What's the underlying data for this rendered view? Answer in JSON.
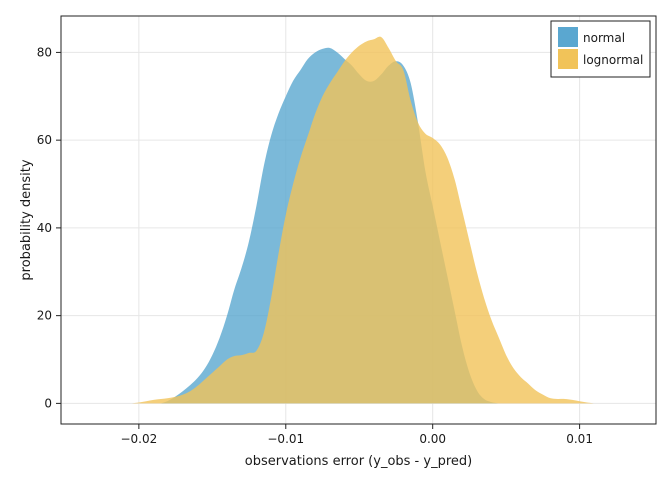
{
  "chart_data": {
    "type": "area",
    "xlabel": "observations error (y_obs - y_pred)",
    "ylabel": "probability density",
    "xlim": [
      -0.0253,
      0.0152
    ],
    "ylim": [
      -4.7,
      88.3
    ],
    "xticks": [
      -0.02,
      -0.01,
      0.0,
      0.01
    ],
    "xtick_labels": [
      "−0.02",
      "−0.01",
      "0.00",
      "0.01"
    ],
    "yticks": [
      0,
      20,
      40,
      60,
      80
    ],
    "ytick_labels": [
      "0",
      "20",
      "40",
      "60",
      "80"
    ],
    "grid": true,
    "legend_position": "top-right",
    "series": [
      {
        "name": "normal",
        "color": "#5aa7d0",
        "opacity": 0.8,
        "x": [
          -0.0185,
          -0.018,
          -0.0175,
          -0.017,
          -0.0165,
          -0.016,
          -0.0155,
          -0.015,
          -0.0145,
          -0.014,
          -0.0135,
          -0.013,
          -0.0125,
          -0.012,
          -0.0115,
          -0.011,
          -0.0105,
          -0.01,
          -0.0095,
          -0.009,
          -0.0085,
          -0.008,
          -0.0075,
          -0.007,
          -0.0065,
          -0.006,
          -0.0055,
          -0.005,
          -0.0045,
          -0.004,
          -0.0035,
          -0.003,
          -0.0025,
          -0.002,
          -0.0015,
          -0.001,
          -0.0005,
          0.0,
          0.0005,
          0.001,
          0.0015,
          0.002,
          0.0025,
          0.003,
          0.0035,
          0.004,
          0.0045
        ],
        "y": [
          0,
          0.6,
          1.6,
          2.8,
          4.2,
          5.8,
          8.0,
          11.0,
          15.0,
          20.0,
          26.0,
          31.0,
          37.0,
          45.0,
          54.0,
          61.0,
          66.0,
          70.0,
          73.5,
          76.0,
          78.5,
          80.0,
          80.8,
          81.0,
          80.0,
          78.5,
          77.0,
          75.0,
          73.5,
          73.5,
          75.0,
          77.0,
          78.0,
          77.0,
          73.0,
          64.0,
          53.0,
          45.0,
          37.0,
          29.0,
          21.0,
          13.0,
          7.0,
          3.0,
          1.0,
          0.3,
          0
        ]
      },
      {
        "name": "lognormal",
        "color": "#f1c359",
        "opacity": 0.8,
        "x": [
          -0.0205,
          -0.02,
          -0.0195,
          -0.019,
          -0.0185,
          -0.018,
          -0.0175,
          -0.017,
          -0.0165,
          -0.016,
          -0.0155,
          -0.015,
          -0.0145,
          -0.014,
          -0.0135,
          -0.013,
          -0.0125,
          -0.012,
          -0.0115,
          -0.011,
          -0.0105,
          -0.01,
          -0.0095,
          -0.009,
          -0.0085,
          -0.008,
          -0.0075,
          -0.007,
          -0.0065,
          -0.006,
          -0.0055,
          -0.005,
          -0.0045,
          -0.004,
          -0.0035,
          -0.003,
          -0.0025,
          -0.002,
          -0.0015,
          -0.001,
          -0.0005,
          0.0,
          0.0005,
          0.001,
          0.0015,
          0.002,
          0.0025,
          0.003,
          0.0035,
          0.004,
          0.0045,
          0.005,
          0.0055,
          0.006,
          0.0065,
          0.007,
          0.0075,
          0.008,
          0.0085,
          0.009,
          0.0095,
          0.01,
          0.0105,
          0.011
        ],
        "y": [
          0,
          0.2,
          0.5,
          0.8,
          1.0,
          1.2,
          1.5,
          2.0,
          2.8,
          4.0,
          5.5,
          7.0,
          8.5,
          10.0,
          10.8,
          11.0,
          11.5,
          12.0,
          16.0,
          24.0,
          34.0,
          43.0,
          50.0,
          56.0,
          61.0,
          66.0,
          70.0,
          73.0,
          75.5,
          78.0,
          80.0,
          81.5,
          82.5,
          83.0,
          83.5,
          81.0,
          78.0,
          76.0,
          69.0,
          64.0,
          61.5,
          60.5,
          59.0,
          56.0,
          51.0,
          44.0,
          37.0,
          30.0,
          24.0,
          19.0,
          15.0,
          11.0,
          8.0,
          6.0,
          4.5,
          3.0,
          2.0,
          1.2,
          1.0,
          1.0,
          0.8,
          0.5,
          0.2,
          0
        ]
      }
    ]
  }
}
